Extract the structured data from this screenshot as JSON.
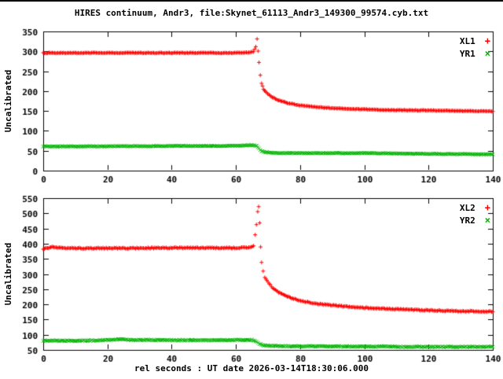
{
  "title": "HIRES continuum, Andr3, file:Skynet_61113_Andr3_149300_99574.cyb.txt",
  "xlabel": "rel seconds : UT date 2026-03-14T18:30:06.000",
  "colors": {
    "red": "#ff0000",
    "green": "#00b400",
    "axis": "#000000",
    "background": "#ffffff"
  },
  "chart_data": [
    {
      "type": "scatter",
      "ylabel": "Uncalibrated",
      "ylim": [
        0,
        350
      ],
      "ytick_step": 50,
      "xlim": [
        0,
        140
      ],
      "xtick_step": 20,
      "grid": false,
      "legend_position": "top-right-inside",
      "series": [
        {
          "name": "XL1",
          "marker": "plus",
          "glyph": "+",
          "color": "#ff0000",
          "jitter": 1.6,
          "anchors": [
            [
              0,
              296
            ],
            [
              20,
              296
            ],
            [
              40,
              296
            ],
            [
              60,
              296
            ],
            [
              64,
              297
            ],
            [
              65.5,
              299
            ],
            [
              66.2,
              312
            ],
            [
              66.6,
              331
            ],
            [
              66.9,
              300
            ],
            [
              67.2,
              272
            ],
            [
              67.6,
              240
            ],
            [
              68,
              220
            ],
            [
              68.6,
              205
            ],
            [
              69.5,
              196
            ],
            [
              71,
              186
            ],
            [
              73,
              178
            ],
            [
              76,
              170
            ],
            [
              80,
              164
            ],
            [
              85,
              160
            ],
            [
              90,
              157
            ],
            [
              100,
              154
            ],
            [
              110,
              152
            ],
            [
              125,
              151
            ],
            [
              140,
              149
            ]
          ]
        },
        {
          "name": "YR1",
          "marker": "cross",
          "glyph": "×",
          "color": "#00b400",
          "jitter": 1.4,
          "anchors": [
            [
              0,
              61
            ],
            [
              20,
              61
            ],
            [
              40,
              62
            ],
            [
              55,
              62
            ],
            [
              62,
              63
            ],
            [
              65,
              64
            ],
            [
              66.5,
              62
            ],
            [
              67.2,
              55
            ],
            [
              68,
              49
            ],
            [
              69,
              47
            ],
            [
              71,
              45
            ],
            [
              75,
              44
            ],
            [
              80,
              44
            ],
            [
              90,
              44
            ],
            [
              100,
              44
            ],
            [
              110,
              43
            ],
            [
              125,
              42
            ],
            [
              140,
              41
            ]
          ]
        }
      ]
    },
    {
      "type": "scatter",
      "ylabel": "Uncalibrated",
      "ylim": [
        50,
        550
      ],
      "ytick_step": 50,
      "xlim": [
        0,
        140
      ],
      "xtick_step": 20,
      "grid": false,
      "legend_position": "top-right-inside",
      "series": [
        {
          "name": "XL2",
          "marker": "plus",
          "glyph": "+",
          "color": "#ff0000",
          "jitter": 3.5,
          "anchors": [
            [
              0,
              383
            ],
            [
              3,
              389
            ],
            [
              6,
              385
            ],
            [
              20,
              385
            ],
            [
              40,
              386
            ],
            [
              60,
              386
            ],
            [
              64,
              387
            ],
            [
              65.5,
              392
            ],
            [
              66,
              430
            ],
            [
              66.4,
              462
            ],
            [
              66.8,
              505
            ],
            [
              67.1,
              522
            ],
            [
              67.4,
              470
            ],
            [
              67.7,
              390
            ],
            [
              68,
              340
            ],
            [
              68.5,
              310
            ],
            [
              69,
              290
            ],
            [
              70,
              272
            ],
            [
              71.5,
              255
            ],
            [
              73,
              242
            ],
            [
              75,
              230
            ],
            [
              78,
              218
            ],
            [
              82,
              208
            ],
            [
              87,
              200
            ],
            [
              95,
              192
            ],
            [
              105,
              186
            ],
            [
              115,
              182
            ],
            [
              128,
              178
            ],
            [
              140,
              176
            ]
          ]
        },
        {
          "name": "YR2",
          "marker": "cross",
          "glyph": "×",
          "color": "#00b400",
          "jitter": 3,
          "anchors": [
            [
              0,
              80
            ],
            [
              10,
              80
            ],
            [
              18,
              82
            ],
            [
              24,
              85
            ],
            [
              28,
              83
            ],
            [
              40,
              82
            ],
            [
              55,
              82
            ],
            [
              62,
              83
            ],
            [
              65,
              83
            ],
            [
              66.5,
              78
            ],
            [
              67.3,
              70
            ],
            [
              68,
              66
            ],
            [
              70,
              64
            ],
            [
              73,
              63
            ],
            [
              78,
              62
            ],
            [
              85,
              62
            ],
            [
              95,
              61
            ],
            [
              105,
              61
            ],
            [
              115,
              60
            ],
            [
              130,
              60
            ],
            [
              140,
              60
            ]
          ]
        }
      ]
    }
  ]
}
